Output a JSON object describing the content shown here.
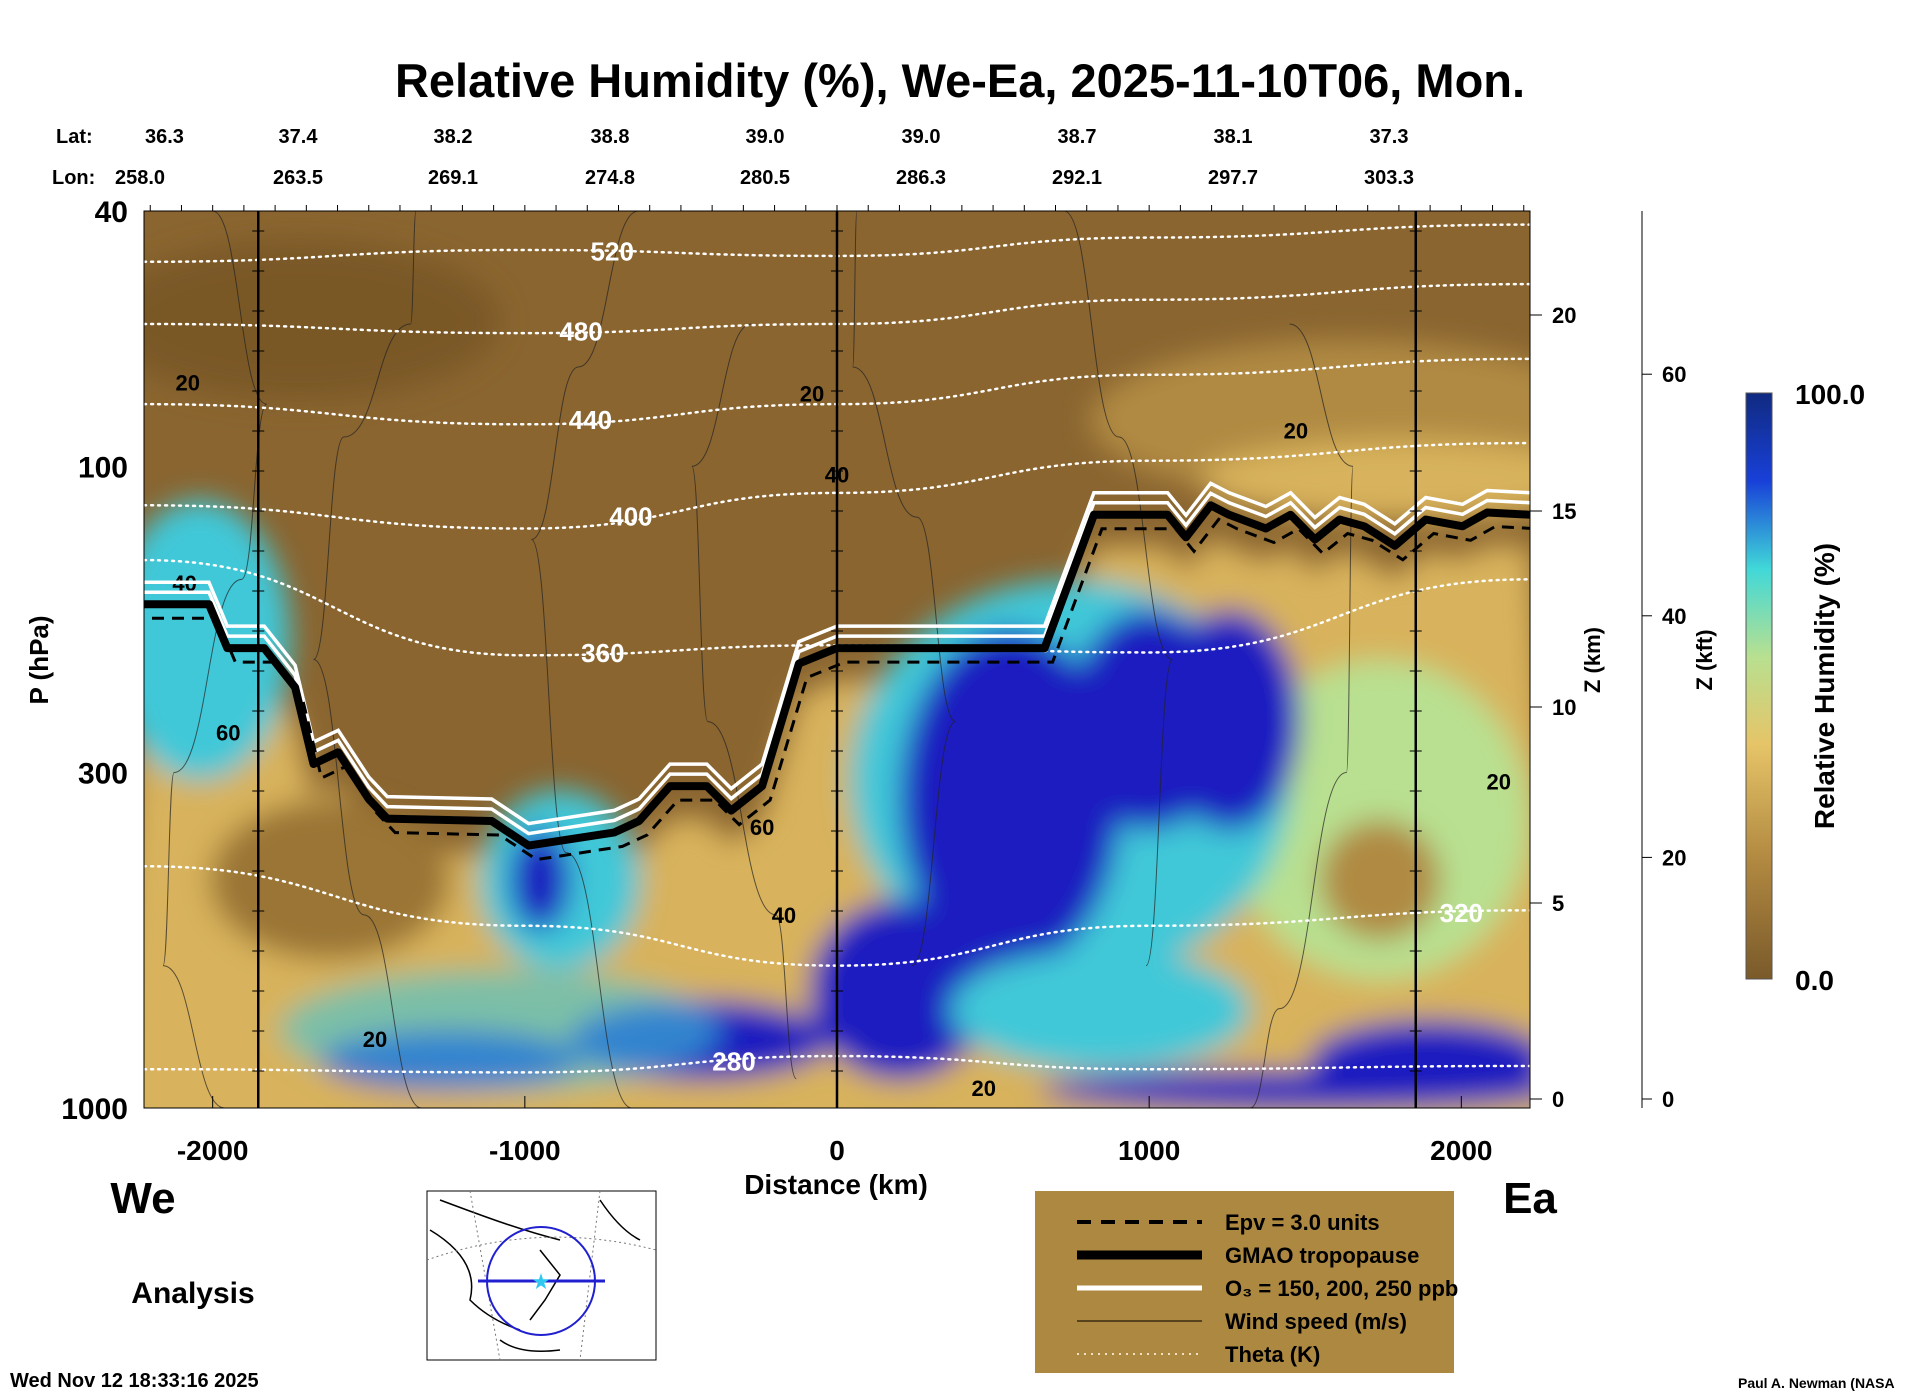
{
  "chart_data": {
    "type": "heatmap",
    "title": "Relative Humidity (%), We-Ea, 2025-11-10T06, Mon.",
    "xlabel": "Distance (km)",
    "ylabel": "P (hPa)",
    "y2label": "Z (km)",
    "y3label": "Z (kft)",
    "colorbar_label": "Relative Humidity (%)",
    "colorbar_range": [
      "0.0",
      "100.0"
    ],
    "xlim": [
      -2220,
      2220
    ],
    "ylim_hpa": [
      1000,
      40
    ],
    "x_ticks": [
      "-2000",
      "-1000",
      "0",
      "1000",
      "2000"
    ],
    "x_tick_values": [
      -2000,
      -1000,
      0,
      1000,
      2000
    ],
    "y_ticks": [
      "40",
      "100",
      "300",
      "1000"
    ],
    "y_tick_values": [
      40,
      100,
      300,
      1000
    ],
    "zkm_ticks": [
      "0",
      "5",
      "10",
      "15",
      "20"
    ],
    "zkft_ticks": [
      "0",
      "20",
      "40",
      "60"
    ],
    "lat_label": "Lat:",
    "lon_label": "Lon:",
    "lat": [
      "36.3",
      "37.4",
      "38.2",
      "38.8",
      "39.0",
      "39.0",
      "38.7",
      "38.1",
      "37.3"
    ],
    "lon": [
      "258.0",
      "263.5",
      "269.1",
      "274.8",
      "280.5",
      "286.3",
      "292.1",
      "297.7",
      "303.3"
    ],
    "station_lines_km": [
      -1854,
      0,
      1854
    ],
    "tropopause": {
      "km": [
        -2220,
        -2012,
        -1953,
        -1835,
        -1736,
        -1677,
        -1598,
        -1500,
        -1441,
        -1106,
        -988,
        -713,
        -634,
        -535,
        -417,
        -339,
        -240,
        -122,
        0,
        665,
        823,
        1059,
        1118,
        1197,
        1256,
        1374,
        1453,
        1531,
        1610,
        1689,
        1787,
        1886,
        2004,
        2083,
        2224
      ],
      "hpa": [
        164,
        164,
        192,
        192,
        221,
        291,
        279,
        330,
        354,
        357,
        390,
        372,
        357,
        315,
        315,
        344,
        315,
        203,
        192,
        192,
        119,
        119,
        129,
        115,
        119,
        125,
        119,
        130,
        121,
        124,
        133,
        121,
        124,
        118,
        119
      ]
    },
    "theta_km": [
      -2220,
      -1000,
      0,
      1000,
      2220
    ],
    "theta": [
      {
        "level": "520",
        "hpa": [
          48,
          46,
          47,
          44,
          42
        ],
        "label_km": -720
      },
      {
        "level": "480",
        "hpa": [
          60,
          62,
          60,
          55,
          52
        ],
        "label_km": -820
      },
      {
        "level": "440",
        "hpa": [
          80,
          86,
          80,
          72,
          68
        ],
        "label_km": -790
      },
      {
        "level": "400",
        "hpa": [
          115,
          125,
          110,
          98,
          92
        ],
        "label_km": -660
      },
      {
        "level": "360",
        "hpa": [
          140,
          197,
          190,
          195,
          150
        ],
        "label_km": -750
      },
      {
        "level": "320",
        "hpa": [
          420,
          520,
          600,
          520,
          492
        ],
        "label_km": 2000
      },
      {
        "level": "280",
        "hpa": [
          870,
          880,
          830,
          870,
          860
        ],
        "label_km": -330
      }
    ],
    "wind_labels": [
      {
        "text": "20",
        "km": -2080,
        "hpa": 74
      },
      {
        "text": "20",
        "km": -80,
        "hpa": 77
      },
      {
        "text": "20",
        "km": 1470,
        "hpa": 88
      },
      {
        "text": "40",
        "km": 0,
        "hpa": 103
      },
      {
        "text": "40",
        "km": -2090,
        "hpa": 152
      },
      {
        "text": "60",
        "km": -1950,
        "hpa": 260
      },
      {
        "text": "60",
        "km": -240,
        "hpa": 365
      },
      {
        "text": "40",
        "km": -170,
        "hpa": 500
      },
      {
        "text": "20",
        "km": 2120,
        "hpa": 310
      },
      {
        "text": "20",
        "km": -1480,
        "hpa": 780
      },
      {
        "text": "20",
        "km": 470,
        "hpa": 930
      }
    ],
    "legend": [
      {
        "style": "dashed",
        "label": "Epv = 3.0 units"
      },
      {
        "style": "thick",
        "label": "GMAO tropopause"
      },
      {
        "style": "white",
        "label": "O₃ = 150, 200, 250 ppb"
      },
      {
        "style": "thin",
        "label": "Wind speed (m/s)"
      },
      {
        "style": "dotted",
        "label": "Theta (K)"
      }
    ],
    "colors": {
      "dry": "#8a6530",
      "mid": "#d8b25c",
      "moist": "#1a1fc0",
      "legend_bg": "#ad8840"
    }
  },
  "labels": {
    "west": "We",
    "east": "Ea",
    "analysis": "Analysis",
    "timestamp": "Wed Nov 12 18:33:16 2025",
    "credit": "Paul A. Newman (NASA"
  }
}
